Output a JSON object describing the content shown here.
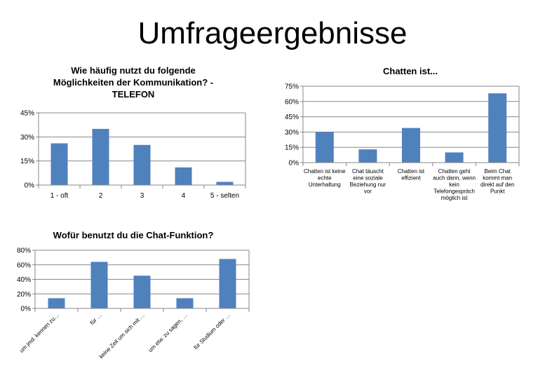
{
  "slide_title": "Umfrageergebnisse",
  "bar_color": "#4F81BD",
  "chart_data": [
    {
      "type": "bar",
      "title_lines": [
        "Wie häufig nutzt du folgende",
        "Möglichkeiten der Kommunikation? -",
        "TELEFON"
      ],
      "categories": [
        "1 - oft",
        "2",
        "3",
        "4",
        "5 - selten"
      ],
      "values": [
        26,
        35,
        25,
        11,
        2
      ],
      "yticks": [
        "0%",
        "15%",
        "30%",
        "45%"
      ],
      "ylim": [
        0,
        45
      ]
    },
    {
      "type": "bar",
      "title_lines": [
        "Chatten ist..."
      ],
      "categories": [
        [
          "Chatten ist keine",
          "echte",
          "Unterhaltung"
        ],
        [
          "Chat täuscht",
          "eine soziale",
          "Beziehung nur",
          "vor"
        ],
        [
          "Chatten ist",
          "effizient"
        ],
        [
          "Chatten geht",
          "auch dann, wenn",
          "kein",
          "Telefongespräch",
          "möglich ist"
        ],
        [
          "Beim Chat",
          "kommt man",
          "direkt auf den",
          "Punkt"
        ]
      ],
      "values": [
        30,
        13,
        34,
        10,
        68
      ],
      "yticks": [
        "0%",
        "15%",
        "30%",
        "45%",
        "60%",
        "75%"
      ],
      "ylim": [
        0,
        75
      ]
    },
    {
      "type": "bar",
      "title_lines": [
        "Wofür benutzt du die Chat-Funktion?"
      ],
      "categories": [
        "um jmd. kennen zu…",
        "für …",
        "keine Zeit um sich mit …",
        "um etw. zu sagen, …",
        "für Studium oder …"
      ],
      "values": [
        14,
        64,
        45,
        14,
        68
      ],
      "yticks": [
        "0%",
        "20%",
        "40%",
        "60%",
        "80%"
      ],
      "ylim": [
        0,
        80
      ]
    }
  ]
}
